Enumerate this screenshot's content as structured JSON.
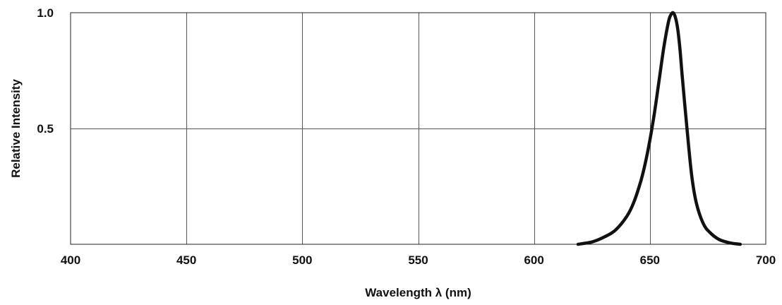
{
  "chart_data": {
    "type": "line",
    "title": "",
    "xlabel": "Wavelength λ (nm)",
    "ylabel": "Relative Intensity",
    "xlim": [
      400,
      700
    ],
    "ylim": [
      0,
      1.0
    ],
    "x_ticks": [
      400,
      450,
      500,
      550,
      600,
      650,
      700
    ],
    "x_tick_labels": [
      "400",
      "450",
      "500",
      "550",
      "600",
      "650",
      "700"
    ],
    "y_ticks": [
      0.5,
      1.0
    ],
    "y_tick_labels": [
      "0.5",
      "1.0"
    ],
    "grid": true,
    "legend": "none",
    "series": [
      {
        "color": "#111111",
        "x": [
          619,
          625,
          630,
          635,
          640,
          643,
          646,
          648,
          650,
          652,
          654,
          656,
          658,
          659,
          660,
          661,
          662,
          663,
          664,
          666,
          668,
          670,
          673,
          676,
          680,
          685,
          689
        ],
        "y": [
          0.0,
          0.01,
          0.03,
          0.06,
          0.12,
          0.18,
          0.27,
          0.35,
          0.45,
          0.57,
          0.71,
          0.85,
          0.96,
          0.99,
          1.0,
          0.98,
          0.93,
          0.84,
          0.72,
          0.5,
          0.3,
          0.18,
          0.09,
          0.05,
          0.02,
          0.005,
          0.0
        ]
      }
    ]
  }
}
